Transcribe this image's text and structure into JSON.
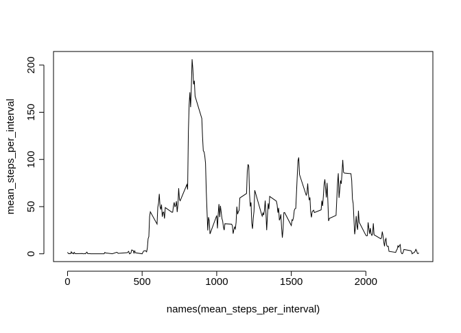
{
  "chart_data": {
    "type": "line",
    "x_label": "names(mean_steps_per_interval)",
    "y_label": "mean_steps_per_interval",
    "color": "#000000",
    "xlim": [
      -94.2,
      2449.2
    ],
    "ylim": [
      -8.25,
      214.4
    ],
    "xticks": [
      0,
      500,
      1000,
      1500,
      2000
    ],
    "yticks": [
      0,
      50,
      100,
      150,
      200
    ],
    "x": [
      0,
      5,
      10,
      15,
      20,
      25,
      30,
      35,
      40,
      45,
      50,
      55,
      100,
      105,
      110,
      115,
      120,
      125,
      130,
      135,
      140,
      145,
      150,
      155,
      200,
      230,
      245,
      250,
      255,
      300,
      330,
      340,
      400,
      410,
      415,
      420,
      425,
      430,
      440,
      445,
      450,
      455,
      500,
      510,
      520,
      525,
      530,
      535,
      540,
      545,
      550,
      555,
      600,
      605,
      610,
      615,
      620,
      625,
      630,
      635,
      640,
      645,
      650,
      655,
      700,
      705,
      710,
      715,
      720,
      725,
      730,
      735,
      740,
      745,
      750,
      755,
      800,
      805,
      810,
      815,
      820,
      825,
      830,
      835,
      840,
      845,
      850,
      855,
      900,
      905,
      910,
      915,
      920,
      925,
      930,
      935,
      940,
      945,
      950,
      955,
      1000,
      1005,
      1010,
      1015,
      1020,
      1025,
      1030,
      1035,
      1040,
      1045,
      1050,
      1055,
      1100,
      1105,
      1110,
      1115,
      1120,
      1125,
      1130,
      1135,
      1140,
      1145,
      1150,
      1155,
      1200,
      1205,
      1210,
      1215,
      1220,
      1225,
      1230,
      1235,
      1240,
      1245,
      1250,
      1255,
      1300,
      1305,
      1310,
      1315,
      1320,
      1325,
      1330,
      1335,
      1340,
      1345,
      1350,
      1355,
      1400,
      1405,
      1410,
      1415,
      1420,
      1425,
      1430,
      1435,
      1440,
      1445,
      1450,
      1455,
      1500,
      1505,
      1510,
      1515,
      1520,
      1525,
      1530,
      1535,
      1540,
      1545,
      1550,
      1555,
      1600,
      1605,
      1610,
      1615,
      1620,
      1625,
      1630,
      1635,
      1640,
      1645,
      1650,
      1655,
      1700,
      1705,
      1710,
      1715,
      1720,
      1725,
      1730,
      1735,
      1740,
      1745,
      1750,
      1755,
      1800,
      1805,
      1810,
      1815,
      1820,
      1825,
      1830,
      1835,
      1840,
      1845,
      1850,
      1855,
      1900,
      1905,
      1910,
      1915,
      1920,
      1925,
      1930,
      1935,
      1940,
      1945,
      1950,
      1955,
      2000,
      2005,
      2010,
      2015,
      2020,
      2025,
      2030,
      2035,
      2040,
      2045,
      2050,
      2055,
      2100,
      2105,
      2110,
      2115,
      2120,
      2125,
      2130,
      2135,
      2140,
      2145,
      2150,
      2155,
      2200,
      2205,
      2210,
      2215,
      2220,
      2225,
      2230,
      2235,
      2240,
      2245,
      2250,
      2255,
      2300,
      2305,
      2310,
      2315,
      2320,
      2325,
      2330,
      2335,
      2340,
      2345,
      2350,
      2355
    ],
    "values": [
      1.7,
      0.3,
      0.1,
      0.2,
      0.1,
      2.1,
      0.5,
      0.9,
      0,
      1.5,
      0.3,
      0.1,
      0.3,
      0,
      0,
      0.3,
      0,
      1.1,
      1.8,
      0.2,
      0.2,
      0.1,
      0.3,
      0,
      0,
      0,
      0,
      1.5,
      0.9,
      0,
      1.6,
      0.5,
      1.2,
      2.6,
      0,
      0.3,
      0.9,
      4.1,
      3.5,
      0.8,
      3.1,
      1.1,
      0,
      3,
      3.3,
      3,
      2.1,
      6.1,
      16,
      18.3,
      39.5,
      44.5,
      31.5,
      49.3,
      53.8,
      63.5,
      50,
      47,
      52.2,
      39.3,
      44,
      44.2,
      37.4,
      49,
      44,
      44.2,
      50.8,
      54.5,
      49.9,
      50.9,
      55.7,
      44.3,
      52.3,
      69.5,
      57.8,
      56.2,
      73.4,
      68.2,
      129.4,
      157.5,
      171.2,
      155.4,
      177.3,
      206.2,
      195.9,
      179.6,
      183.4,
      167,
      143.5,
      124,
      109.1,
      108.1,
      103.7,
      96,
      66.2,
      45.2,
      24.8,
      38.8,
      35,
      21.1,
      40.6,
      27,
      42.4,
      52.7,
      38.9,
      50.8,
      44.3,
      37.4,
      34.7,
      28.3,
      25.1,
      31.9,
      31.4,
      29.7,
      21.3,
      25.5,
      28.4,
      26.5,
      33.4,
      50,
      42,
      44.6,
      46,
      59.2,
      63.9,
      87.7,
      94.8,
      92.8,
      63.4,
      50.2,
      54.5,
      32.4,
      26.5,
      37.7,
      45.1,
      67.3,
      42.3,
      39.9,
      43.3,
      41,
      46.2,
      56.4,
      42.8,
      25.1,
      40,
      53.5,
      47.3,
      60.8,
      55.8,
      52,
      43.6,
      48.7,
      35.5,
      37.5,
      41.8,
      27.5,
      17.1,
      26.1,
      43.6,
      43.8,
      30,
      36.1,
      35.5,
      38.8,
      46,
      47.8,
      48.1,
      65.3,
      82.9,
      98.7,
      102.1,
      84,
      62.1,
      64.1,
      74.5,
      63.2,
      56.9,
      59.8,
      43.9,
      38.6,
      44.7,
      45.5,
      46.2,
      43.7,
      46.6,
      56.3,
      50.7,
      61.2,
      73.4,
      78.9,
      68.9,
      59.7,
      75.1,
      56.5,
      34.8,
      37.5,
      40.7,
      58,
      74.7,
      85.3,
      59.3,
      67.8,
      77.7,
      74.2,
      85.3,
      99.5,
      86.6,
      85.6,
      84.9,
      77.8,
      58,
      53.4,
      36.3,
      20.7,
      27.4,
      40,
      30.2,
      25.5,
      45.7,
      33.5,
      19.6,
      19,
      19.3,
      33.3,
      26.8,
      21.2,
      27.3,
      21.3,
      19.5,
      21.3,
      32.3,
      20.2,
      15.9,
      17.2,
      23.5,
      19.2,
      12.5,
      8,
      14.7,
      16.3,
      8.7,
      7.8,
      8.1,
      2.6,
      1.5,
      3.7,
      4.8,
      8.5,
      7.1,
      8.7,
      9.8,
      2.2,
      0.3,
      0.1,
      1.6,
      4.6,
      3.3,
      2.8,
      0,
      0.8,
      1,
      1.6,
      2.6,
      4.7,
      3.3,
      0.6,
      0.2,
      1.1
    ]
  }
}
